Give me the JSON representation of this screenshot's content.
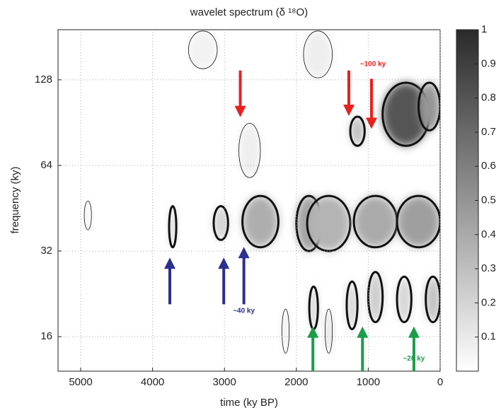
{
  "chart_data": {
    "type": "heatmap",
    "title": "wavelet spectrum (δ ¹⁸O)",
    "x_label": "time (ky BP)",
    "y_label": "frequency (ky)",
    "xlim": [
      5315,
      0
    ],
    "xticks": [
      5000,
      4000,
      3000,
      2000,
      1000,
      0
    ],
    "ylim": [
      12.1,
      192
    ],
    "yticks": [
      16,
      32,
      64,
      128
    ],
    "log_y": true,
    "grid": true,
    "colormap": [
      "#ffffff",
      "#2a2a2a"
    ],
    "clim": [
      0,
      1
    ],
    "cticks": [
      0.1,
      0.2,
      0.3,
      0.4,
      0.5,
      0.6,
      0.7,
      0.8,
      0.9,
      1
    ],
    "contour_level": 0.2,
    "blobs": [
      {
        "x0": 2750,
        "x1": 2250,
        "y0": 33,
        "y1": 50,
        "value": 0.38
      },
      {
        "x0": 2000,
        "x1": 1650,
        "y0": 32,
        "y1": 50,
        "value": 0.45
      },
      {
        "x0": 1850,
        "x1": 1250,
        "y0": 32,
        "y1": 50,
        "value": 0.35
      },
      {
        "x0": 1200,
        "x1": 600,
        "y0": 33,
        "y1": 50,
        "value": 0.4
      },
      {
        "x0": 600,
        "x1": 0,
        "y0": 33,
        "y1": 50,
        "value": 0.45
      },
      {
        "x0": 3150,
        "x1": 2950,
        "y0": 35,
        "y1": 46,
        "value": 0.22
      },
      {
        "x0": 3770,
        "x1": 3670,
        "y0": 33,
        "y1": 46,
        "value": 0.2
      },
      {
        "x0": 800,
        "x1": 150,
        "y0": 75,
        "y1": 125,
        "value": 0.8
      },
      {
        "x0": 1250,
        "x1": 1050,
        "y0": 75,
        "y1": 95,
        "value": 0.3
      },
      {
        "x0": 300,
        "x1": 0,
        "y0": 85,
        "y1": 125,
        "value": 0.5
      },
      {
        "x0": 1900,
        "x1": 1500,
        "y0": 130,
        "y1": 190,
        "value": 0.08
      },
      {
        "x0": 3500,
        "x1": 3100,
        "y0": 140,
        "y1": 190,
        "value": 0.06
      },
      {
        "x0": 1820,
        "x1": 1700,
        "y0": 17,
        "y1": 24,
        "value": 0.2
      },
      {
        "x0": 1600,
        "x1": 1500,
        "y0": 14,
        "y1": 20,
        "value": 0.15
      },
      {
        "x0": 1000,
        "x1": 800,
        "y0": 18,
        "y1": 27,
        "value": 0.25
      },
      {
        "x0": 1300,
        "x1": 1150,
        "y0": 17,
        "y1": 25,
        "value": 0.2
      },
      {
        "x0": 600,
        "x1": 400,
        "y0": 18,
        "y1": 26,
        "value": 0.2
      },
      {
        "x0": 200,
        "x1": 0,
        "y0": 18,
        "y1": 26,
        "value": 0.3
      },
      {
        "x0": 2200,
        "x1": 2100,
        "y0": 14,
        "y1": 20,
        "value": 0.08
      },
      {
        "x0": 2800,
        "x1": 2500,
        "y0": 58,
        "y1": 90,
        "value": 0.08
      },
      {
        "x0": 4950,
        "x1": 4850,
        "y0": 38,
        "y1": 48,
        "value": 0.06
      }
    ],
    "annotations": [
      {
        "text": "~100 ky",
        "color": "#e8201e",
        "x": 935,
        "y": 145,
        "arrows": [
          {
            "x": 2780,
            "from": 138,
            "to": 99
          },
          {
            "x": 1270,
            "from": 138,
            "to": 100
          },
          {
            "x": 955,
            "from": 129,
            "to": 90
          }
        ]
      },
      {
        "text": "~40 ky",
        "color": "#2b2f8f",
        "x": 2730,
        "y": 19.7,
        "arrows": [
          {
            "x": 3760,
            "from": 20.8,
            "to": 29
          },
          {
            "x": 3010,
            "from": 20.8,
            "to": 29
          },
          {
            "x": 2730,
            "from": 20.8,
            "to": 31.6
          }
        ]
      },
      {
        "text": "~20 ky",
        "color": "#1a9e4a",
        "x": 365,
        "y": 13.4,
        "arrows": [
          {
            "x": 1770,
            "from": 12.1,
            "to": 16.6
          },
          {
            "x": 1080,
            "from": 12.1,
            "to": 16.6
          },
          {
            "x": 365,
            "from": 12.1,
            "to": 16.6
          }
        ]
      }
    ]
  }
}
